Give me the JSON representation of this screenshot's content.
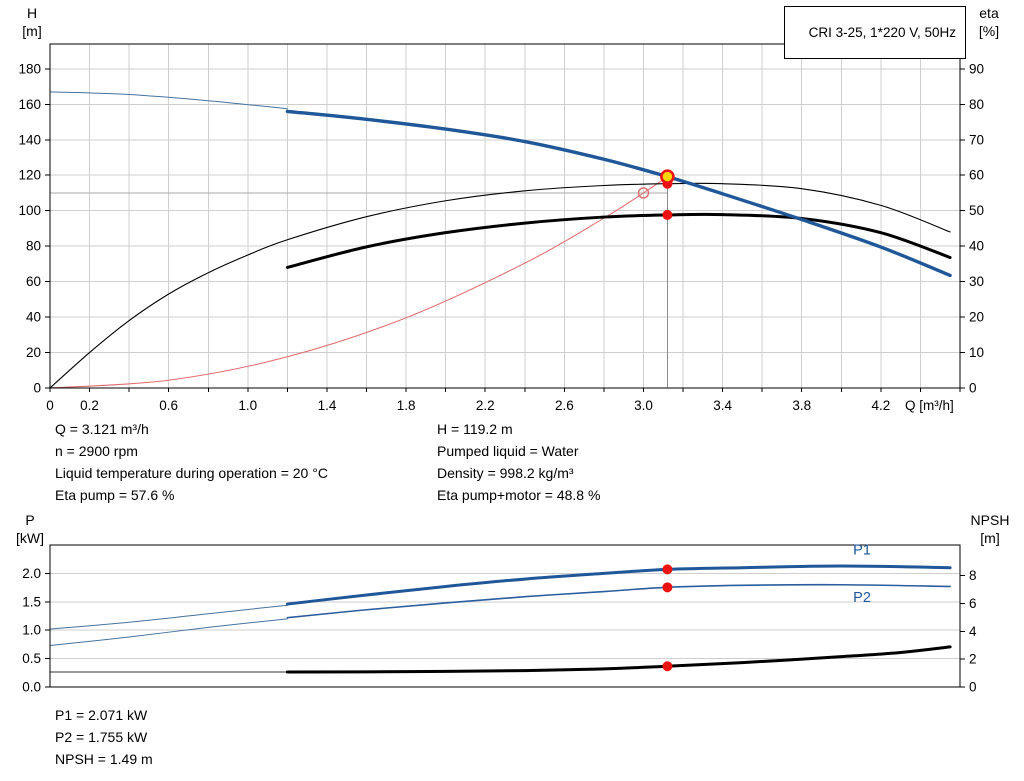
{
  "chart_data": [
    {
      "name": "hq-eta-chart",
      "type": "line",
      "title": "CRI 3-25, 1*220 V, 50Hz",
      "x_axis": {
        "label": "Q [m³/h]",
        "min": 0,
        "max": 4.6,
        "grid_step": 0.2,
        "tick_step": 0.2,
        "ticks": [
          [
            0,
            "0"
          ],
          [
            0.2,
            "0.2"
          ],
          [
            0.6,
            "0.6"
          ],
          [
            1,
            "1.0"
          ],
          [
            1.4,
            "1.4"
          ],
          [
            1.8,
            "1.8"
          ],
          [
            2.2,
            "2.2"
          ],
          [
            2.6,
            "2.6"
          ],
          [
            3,
            "3.0"
          ],
          [
            3.4,
            "3.4"
          ],
          [
            3.8,
            "3.8"
          ],
          [
            4.2,
            "4.2"
          ]
        ]
      },
      "y_left": {
        "label": [
          "H",
          "[m]"
        ],
        "min": 0,
        "max": 194,
        "ticks": [
          [
            0,
            "0"
          ],
          [
            20,
            "20"
          ],
          [
            40,
            "40"
          ],
          [
            60,
            "60"
          ],
          [
            80,
            "80"
          ],
          [
            100,
            "100"
          ],
          [
            120,
            "120"
          ],
          [
            140,
            "140"
          ],
          [
            160,
            "160"
          ],
          [
            180,
            "180"
          ]
        ]
      },
      "y_right": {
        "label": [
          "eta",
          "[%]"
        ],
        "min": 0,
        "max": 97,
        "ticks": [
          [
            0,
            "0"
          ],
          [
            10,
            "10"
          ],
          [
            20,
            "20"
          ],
          [
            30,
            "30"
          ],
          [
            40,
            "40"
          ],
          [
            50,
            "50"
          ],
          [
            60,
            "60"
          ],
          [
            70,
            "70"
          ],
          [
            80,
            "80"
          ],
          [
            90,
            "90"
          ]
        ]
      },
      "grid_color": "#cfcfcf",
      "series": [
        {
          "name": "system-curve",
          "axis": "left",
          "color": "#e06a6a",
          "width": 1,
          "points": [
            [
              0,
              0
            ],
            [
              0.6,
              4.4
            ],
            [
              1.2,
              17.6
            ],
            [
              1.8,
              39.6
            ],
            [
              2.4,
              70.4
            ],
            [
              2.8,
              95.8
            ],
            [
              3,
              110
            ],
            [
              3.121,
              119.2
            ]
          ]
        },
        {
          "name": "eta-pump",
          "axis": "right",
          "color": "#000000",
          "width": 1.1,
          "points": [
            [
              0,
              0
            ],
            [
              0.2,
              10
            ],
            [
              0.4,
              19
            ],
            [
              0.6,
              26.5
            ],
            [
              0.8,
              32.5
            ],
            [
              1,
              37.5
            ],
            [
              1.2,
              41.8
            ],
            [
              1.6,
              48.3
            ],
            [
              2,
              52.8
            ],
            [
              2.4,
              55.6
            ],
            [
              2.8,
              57.1
            ],
            [
              3.121,
              57.6
            ],
            [
              3.4,
              57.6
            ],
            [
              3.8,
              56.2
            ],
            [
              4.2,
              51.5
            ],
            [
              4.55,
              44
            ]
          ]
        },
        {
          "name": "eta-pump-motor",
          "axis": "right",
          "color": "#000000",
          "width": 3,
          "points": [
            [
              1.2,
              34
            ],
            [
              1.6,
              39.8
            ],
            [
              2,
              43.8
            ],
            [
              2.4,
              46.5
            ],
            [
              2.8,
              48.2
            ],
            [
              3.121,
              48.8
            ],
            [
              3.4,
              48.9
            ],
            [
              3.8,
              47.8
            ],
            [
              4.2,
              43.8
            ],
            [
              4.55,
              36.8
            ]
          ]
        },
        {
          "name": "hq-curve-extrapolated",
          "axis": "left",
          "color": "#46729f",
          "width": 1,
          "points": [
            [
              0,
              167
            ],
            [
              0.4,
              165.5
            ],
            [
              0.8,
              162
            ],
            [
              1.2,
              157.5
            ]
          ]
        },
        {
          "name": "hq-curve",
          "axis": "left",
          "color": "#1f5799",
          "width": 3.4,
          "points": [
            [
              1.2,
              156
            ],
            [
              1.6,
              151.5
            ],
            [
              2,
              146
            ],
            [
              2.4,
              139
            ],
            [
              2.8,
              129
            ],
            [
              3.121,
              119.2
            ],
            [
              3.4,
              109.5
            ],
            [
              3.8,
              95
            ],
            [
              4.2,
              79.5
            ],
            [
              4.55,
              63.5
            ]
          ]
        }
      ],
      "guides": [
        {
          "type": "h",
          "axis": "left",
          "value": 110,
          "from": 0,
          "to": 3.121,
          "color": "#aaaaaa"
        },
        {
          "type": "v",
          "axis": "left",
          "q": 3.121,
          "from": 0,
          "to": 119.2,
          "color": "#8c8c8c"
        }
      ],
      "markers": [
        {
          "q": 3,
          "value": 110,
          "axis": "left",
          "style": "ring",
          "name": "requested-duty-point"
        },
        {
          "q": 3.121,
          "value": 57.6,
          "axis": "right",
          "style": "dot",
          "name": "eta-pump-point"
        },
        {
          "q": 3.121,
          "value": 48.8,
          "axis": "right",
          "style": "dot",
          "name": "eta-pump-motor-point"
        },
        {
          "q": 3.121,
          "value": 119.2,
          "axis": "left",
          "style": "duty",
          "name": "operating-point"
        }
      ]
    },
    {
      "name": "power-npsh-chart",
      "type": "line",
      "x_axis": {
        "min": 0,
        "max": 4.6
      },
      "y_left": {
        "label": [
          "P",
          "[kW]"
        ],
        "min": 0,
        "max": 2.5,
        "ticks": [
          [
            0,
            "0.0"
          ],
          [
            0.5,
            "0.5"
          ],
          [
            1,
            "1.0"
          ],
          [
            1.5,
            "1.5"
          ],
          [
            2,
            "2.0"
          ]
        ]
      },
      "y_right": {
        "label": [
          "NPSH",
          "[m]"
        ],
        "min": 0,
        "max": 10.2,
        "ticks": [
          [
            0,
            "0"
          ],
          [
            2,
            "2"
          ],
          [
            4,
            "4"
          ],
          [
            6,
            "6"
          ],
          [
            8,
            "8"
          ]
        ]
      },
      "grid_color": "#cfcfcf",
      "series": [
        {
          "name": "p1-extrapolated",
          "axis": "left",
          "color": "#46729f",
          "width": 1,
          "points": [
            [
              0,
              1.02
            ],
            [
              0.4,
              1.14
            ],
            [
              0.8,
              1.29
            ],
            [
              1.2,
              1.44
            ]
          ]
        },
        {
          "name": "p1",
          "axis": "left",
          "color": "#1f5799",
          "width": 3,
          "points": [
            [
              1.2,
              1.46
            ],
            [
              1.6,
              1.62
            ],
            [
              2,
              1.77
            ],
            [
              2.4,
              1.9
            ],
            [
              2.8,
              2
            ],
            [
              3.121,
              2.071
            ],
            [
              3.5,
              2.1
            ],
            [
              4,
              2.13
            ],
            [
              4.55,
              2.1
            ]
          ]
        },
        {
          "name": "p2-extrapolated",
          "axis": "left",
          "color": "#46729f",
          "width": 1,
          "points": [
            [
              0,
              0.73
            ],
            [
              0.4,
              0.88
            ],
            [
              0.8,
              1.05
            ],
            [
              1.2,
              1.2
            ]
          ]
        },
        {
          "name": "p2",
          "axis": "left",
          "color": "#2a5d9e",
          "width": 1.6,
          "points": [
            [
              1.2,
              1.22
            ],
            [
              1.6,
              1.36
            ],
            [
              2,
              1.48
            ],
            [
              2.4,
              1.59
            ],
            [
              2.8,
              1.68
            ],
            [
              3.121,
              1.755
            ],
            [
              3.5,
              1.79
            ],
            [
              4,
              1.8
            ],
            [
              4.55,
              1.77
            ]
          ]
        },
        {
          "name": "npsh-extrapolated",
          "axis": "right",
          "color": "#333333",
          "width": 1,
          "points": [
            [
              0,
              1.08
            ],
            [
              0.6,
              1.08
            ],
            [
              1.2,
              1.08
            ]
          ]
        },
        {
          "name": "npsh",
          "axis": "right",
          "color": "#000000",
          "width": 3,
          "points": [
            [
              1.2,
              1.08
            ],
            [
              1.8,
              1.1
            ],
            [
              2.4,
              1.18
            ],
            [
              2.8,
              1.3
            ],
            [
              3.121,
              1.49
            ],
            [
              3.5,
              1.75
            ],
            [
              4,
              2.18
            ],
            [
              4.3,
              2.48
            ],
            [
              4.55,
              2.88
            ]
          ]
        }
      ],
      "labels": [
        {
          "text": "P1",
          "x": 4.06,
          "value": 2.33,
          "axis": "left",
          "color": "#1f5799"
        },
        {
          "text": "P2",
          "x": 4.06,
          "value": 1.5,
          "axis": "left",
          "color": "#1f5799"
        }
      ],
      "markers": [
        {
          "q": 3.121,
          "value": 2.071,
          "axis": "left",
          "style": "dot",
          "name": "p1-point"
        },
        {
          "q": 3.121,
          "value": 1.755,
          "axis": "left",
          "style": "dot",
          "name": "p2-point"
        },
        {
          "q": 3.121,
          "value": 1.49,
          "axis": "right",
          "style": "dot",
          "name": "npsh-point"
        }
      ]
    }
  ],
  "info_top": {
    "left": [
      "Q = 3.121 m³/h",
      "n = 2900 rpm",
      "Liquid temperature during operation = 20 °C",
      "Eta pump = 57.6 %"
    ],
    "right": [
      "H = 119.2 m",
      "Pumped liquid = Water",
      "Density = 998.2 kg/m³",
      "Eta pump+motor = 48.8 %"
    ]
  },
  "info_bottom": [
    "P1 = 2.071 kW",
    "P2 = 1.755 kW",
    "NPSH = 1.49 m"
  ]
}
